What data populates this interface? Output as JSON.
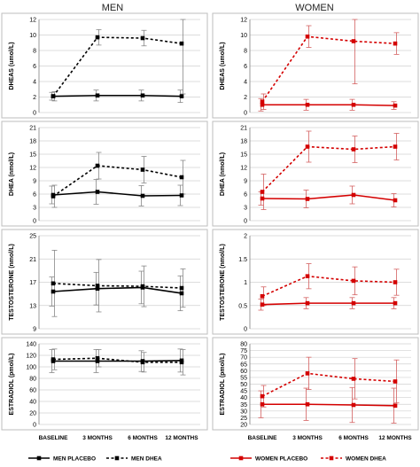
{
  "column_titles": [
    "MEN",
    "WOMEN"
  ],
  "x_categories": [
    "BASELINE",
    "3 MONTHS",
    "6 MONTHS",
    "12 MONTHS"
  ],
  "legend": {
    "men_placebo": "MEN PLACEBO",
    "men_dhea": "MEN DHEA",
    "women_placebo": "WOMEN PLACEBO",
    "women_dhea": "WOMEN DHEA"
  },
  "colors": {
    "men": "#000000",
    "women": "#d40000",
    "errorbar_men": "#888888",
    "errorbar_women": "#d46060"
  },
  "chart_data": [
    {
      "type": "line",
      "panel": "men-dheas",
      "ylabel": "DHEAS (umol/L)",
      "ylim": [
        0,
        12
      ],
      "yticks": [
        0,
        2,
        4,
        6,
        8,
        10,
        12
      ],
      "categories": [
        "BASELINE",
        "3 MONTHS",
        "6 MONTHS",
        "12 MONTHS"
      ],
      "series": [
        {
          "name": "MEN PLACEBO",
          "style": "solid",
          "values": [
            2.1,
            2.2,
            2.2,
            2.1
          ],
          "err": [
            0.5,
            0.7,
            0.7,
            0.8
          ]
        },
        {
          "name": "MEN DHEA",
          "style": "dashed",
          "values": [
            2.1,
            9.7,
            9.6,
            8.9
          ],
          "err": [
            0.6,
            1.0,
            1.0,
            6.5
          ]
        }
      ]
    },
    {
      "type": "line",
      "panel": "women-dheas",
      "ylabel": "DHEAS (umol/L)",
      "ylim": [
        0,
        12
      ],
      "yticks": [
        0,
        2,
        4,
        6,
        8,
        10,
        12
      ],
      "categories": [
        "BASELINE",
        "3 MONTHS",
        "6 MONTHS",
        "12 MONTHS"
      ],
      "series": [
        {
          "name": "WOMEN PLACEBO",
          "style": "solid",
          "values": [
            1.0,
            1.0,
            1.0,
            0.9
          ],
          "err": [
            0.8,
            0.7,
            0.7,
            0.5
          ]
        },
        {
          "name": "WOMEN DHEA",
          "style": "dashed",
          "values": [
            1.4,
            9.8,
            9.2,
            8.9
          ],
          "err": [
            1.0,
            1.4,
            5.5,
            1.4
          ]
        }
      ]
    },
    {
      "type": "line",
      "panel": "men-dhea",
      "ylabel": "DHEA (nmol/L)",
      "ylim": [
        0,
        21
      ],
      "yticks": [
        0,
        3,
        6,
        9,
        12,
        15,
        18,
        21
      ],
      "categories": [
        "BASELINE",
        "3 MONTHS",
        "6 MONTHS",
        "12 MONTHS"
      ],
      "series": [
        {
          "name": "MEN PLACEBO",
          "style": "solid",
          "values": [
            5.8,
            6.5,
            5.6,
            5.7
          ],
          "err": [
            2.0,
            2.8,
            2.3,
            2.3
          ]
        },
        {
          "name": "MEN DHEA",
          "style": "dashed",
          "values": [
            5.5,
            12.4,
            11.5,
            9.8
          ],
          "err": [
            2.5,
            3.0,
            3.0,
            3.8
          ]
        }
      ]
    },
    {
      "type": "line",
      "panel": "women-dhea",
      "ylabel": "DHEA (nmol/L)",
      "ylim": [
        0,
        21
      ],
      "yticks": [
        0,
        3,
        6,
        9,
        12,
        15,
        18,
        21
      ],
      "categories": [
        "BASELINE",
        "3 MONTHS",
        "6 MONTHS",
        "12 MONTHS"
      ],
      "series": [
        {
          "name": "WOMEN PLACEBO",
          "style": "solid",
          "values": [
            5.0,
            4.9,
            5.8,
            4.6
          ],
          "err": [
            1.5,
            2.0,
            2.0,
            1.5
          ]
        },
        {
          "name": "WOMEN DHEA",
          "style": "dashed",
          "values": [
            6.5,
            16.7,
            16.1,
            16.7
          ],
          "err": [
            4.0,
            3.5,
            3.0,
            3.0
          ]
        }
      ]
    },
    {
      "type": "line",
      "panel": "men-testosterone",
      "ylabel": "TESTOSTERONE (nmol/L)",
      "ylim": [
        9,
        25
      ],
      "yticks": [
        9,
        13,
        17,
        21,
        25
      ],
      "categories": [
        "BASELINE",
        "3 MONTHS",
        "6 MONTHS",
        "12 MONTHS"
      ],
      "series": [
        {
          "name": "MEN PLACEBO",
          "style": "solid",
          "values": [
            15.4,
            15.9,
            16.1,
            15.1
          ],
          "err": [
            2.5,
            2.8,
            2.8,
            3.0
          ]
        },
        {
          "name": "MEN DHEA",
          "style": "dashed",
          "values": [
            16.8,
            16.4,
            16.3,
            16.0
          ],
          "err": [
            5.7,
            4.5,
            3.5,
            3.3
          ]
        }
      ]
    },
    {
      "type": "line",
      "panel": "women-testosterone",
      "ylabel": "TESTOSTERONE (nmol/L)",
      "ylim": [
        0,
        2
      ],
      "yticks": [
        0,
        0.5,
        1,
        1.5,
        2
      ],
      "categories": [
        "BASELINE",
        "3 MONTHS",
        "6 MONTHS",
        "12 MONTHS"
      ],
      "series": [
        {
          "name": "WOMEN PLACEBO",
          "style": "solid",
          "values": [
            0.52,
            0.55,
            0.55,
            0.55
          ],
          "err": [
            0.12,
            0.12,
            0.12,
            0.12
          ]
        },
        {
          "name": "WOMEN DHEA",
          "style": "dashed",
          "values": [
            0.7,
            1.13,
            1.03,
            1.0
          ],
          "err": [
            0.2,
            0.27,
            0.3,
            0.28
          ]
        }
      ]
    },
    {
      "type": "line",
      "panel": "men-estradiol",
      "ylabel": "ESTRADIOL (pmol/L)",
      "ylim": [
        0,
        140
      ],
      "yticks": [
        0,
        20,
        40,
        60,
        80,
        100,
        120,
        140
      ],
      "categories": [
        "BASELINE",
        "3 MONTHS",
        "6 MONTHS",
        "12 MONTHS"
      ],
      "series": [
        {
          "name": "MEN PLACEBO",
          "style": "solid",
          "values": [
            110,
            110,
            110,
            111
          ],
          "err": [
            20,
            20,
            18,
            20
          ]
        },
        {
          "name": "MEN DHEA",
          "style": "dashed",
          "values": [
            113,
            115,
            108,
            108
          ],
          "err": [
            18,
            15,
            17,
            22
          ]
        }
      ]
    },
    {
      "type": "line",
      "panel": "women-estradiol",
      "ylabel": "ESTRADIOL (pmol/L)",
      "ylim": [
        20,
        80
      ],
      "yticks": [
        20,
        25,
        30,
        35,
        40,
        45,
        50,
        55,
        60,
        65,
        70,
        75,
        80
      ],
      "categories": [
        "BASELINE",
        "3 MONTHS",
        "6 MONTHS",
        "12 MONTHS"
      ],
      "series": [
        {
          "name": "WOMEN PLACEBO",
          "style": "solid",
          "values": [
            35,
            35,
            34.5,
            34
          ],
          "err": [
            10,
            12,
            13,
            13
          ]
        },
        {
          "name": "WOMEN DHEA",
          "style": "dashed",
          "values": [
            41,
            58,
            54,
            52
          ],
          "err": [
            8,
            12,
            15,
            16
          ]
        }
      ]
    }
  ]
}
